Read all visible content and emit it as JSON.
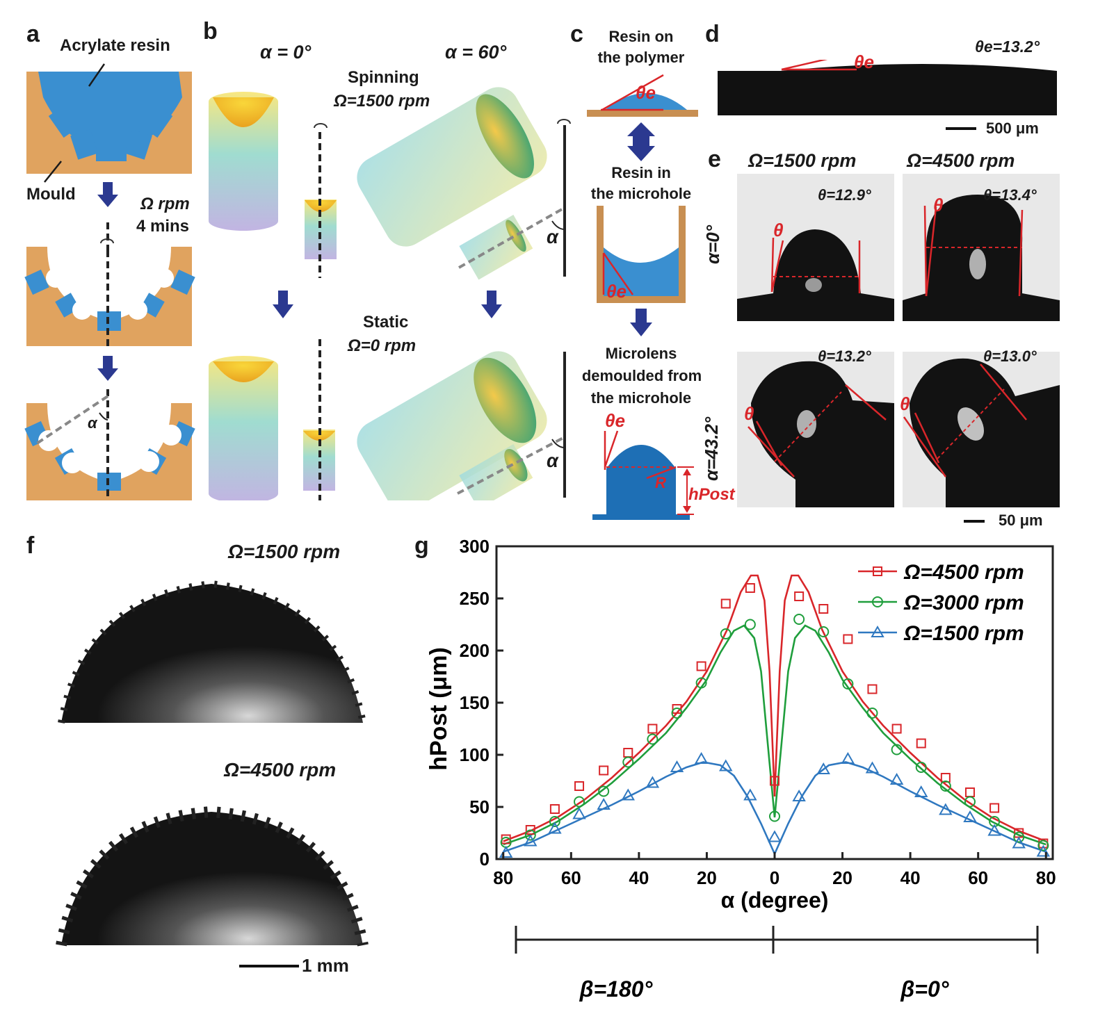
{
  "panels": {
    "a": {
      "letter": "a",
      "resin_label": "Acrylate resin",
      "mould_label": "Mould",
      "speed_label": "Ω rpm",
      "time_label": "4 mins",
      "angle_symbol": "α"
    },
    "b": {
      "letter": "b",
      "alpha0_label": "α = 0°",
      "alpha60_label": "α = 60°",
      "spinning_label": "Spinning",
      "spinning_speed": "Ω=1500 rpm",
      "static_label": "Static",
      "static_speed": "Ω=0 rpm",
      "angle_symbol": "α"
    },
    "c": {
      "letter": "c",
      "step1_line1": "Resin on",
      "step1_line2": "the polymer",
      "step2_line1": "Resin in",
      "step2_line2": "the microhole",
      "step3_line1": "Microlens",
      "step3_line2": "demoulded from",
      "step3_line2b": "the microhole",
      "theta_e": "θe",
      "radius": "R",
      "h_post": "hPost"
    },
    "d": {
      "letter": "d",
      "contact_angle": "θe=13.2°",
      "theta_e": "θe",
      "scale": "500 μm"
    },
    "e": {
      "letter": "e",
      "col1": "Ω=1500 rpm",
      "col2": "Ω=4500 rpm",
      "row1": "α=0°",
      "row2": "α=43.2°",
      "angles": [
        "θ=12.9°",
        "θ=13.4°",
        "θ=13.2°",
        "θ=13.0°"
      ],
      "theta": "θ",
      "scale": "50 μm"
    },
    "f": {
      "letter": "f",
      "top_label": "Ω=1500 rpm",
      "bottom_label": "Ω=4500 rpm",
      "scale": "1 mm"
    },
    "g": {
      "letter": "g",
      "beta_left": "β=180°",
      "beta_right": "β=0°"
    }
  },
  "chart_data": {
    "type": "scatter",
    "ylabel": "hPost (μm)",
    "xlabel": "α (degree)",
    "xlim": [
      -82,
      82
    ],
    "ylim": [
      0,
      300
    ],
    "x_ticks": [
      "80",
      "60",
      "40",
      "20",
      "0",
      "20",
      "40",
      "60",
      "80"
    ],
    "y_ticks": [
      "0",
      "50",
      "100",
      "150",
      "200",
      "250",
      "300"
    ],
    "x_tick_values": [
      -80,
      -60,
      -40,
      -20,
      0,
      20,
      40,
      60,
      80
    ],
    "y_tick_values": [
      0,
      50,
      100,
      150,
      200,
      250,
      300
    ],
    "legend_position": "top-right",
    "series": [
      {
        "name": "Ω=4500 rpm",
        "color": "#d9262a",
        "marker": "square",
        "points": [
          [
            -79.2,
            19
          ],
          [
            -72,
            28
          ],
          [
            -64.8,
            48
          ],
          [
            -57.6,
            70
          ],
          [
            -50.4,
            85
          ],
          [
            -43.2,
            102
          ],
          [
            -36,
            125
          ],
          [
            -28.8,
            144
          ],
          [
            -21.6,
            185
          ],
          [
            -14.4,
            245
          ],
          [
            -7.2,
            260
          ],
          [
            0,
            75
          ],
          [
            7.2,
            252
          ],
          [
            14.4,
            240
          ],
          [
            21.6,
            211
          ],
          [
            28.8,
            163
          ],
          [
            36,
            125
          ],
          [
            43.2,
            111
          ],
          [
            50.4,
            78
          ],
          [
            57.6,
            64
          ],
          [
            64.8,
            49
          ],
          [
            72,
            25
          ],
          [
            79.2,
            15
          ]
        ],
        "fit": [
          [
            -80,
            17
          ],
          [
            -72,
            27
          ],
          [
            -64,
            40
          ],
          [
            -56,
            57
          ],
          [
            -48,
            78
          ],
          [
            -40,
            102
          ],
          [
            -32,
            128
          ],
          [
            -26,
            151
          ],
          [
            -20,
            180
          ],
          [
            -14,
            220
          ],
          [
            -10,
            256
          ],
          [
            -7,
            272
          ],
          [
            -5,
            272
          ],
          [
            -3,
            248
          ],
          [
            -1.5,
            180
          ],
          [
            0,
            60
          ],
          [
            1.5,
            180
          ],
          [
            3,
            248
          ],
          [
            5,
            272
          ],
          [
            7,
            272
          ],
          [
            10,
            256
          ],
          [
            14,
            220
          ],
          [
            20,
            180
          ],
          [
            26,
            151
          ],
          [
            32,
            128
          ],
          [
            40,
            102
          ],
          [
            48,
            78
          ],
          [
            56,
            57
          ],
          [
            64,
            40
          ],
          [
            72,
            27
          ],
          [
            80,
            17
          ]
        ]
      },
      {
        "name": "Ω=3000 rpm",
        "color": "#1f9e3c",
        "marker": "circle",
        "points": [
          [
            -79.2,
            16
          ],
          [
            -72,
            23
          ],
          [
            -64.8,
            36
          ],
          [
            -57.6,
            55
          ],
          [
            -50.4,
            65
          ],
          [
            -43.2,
            93
          ],
          [
            -36,
            115
          ],
          [
            -28.8,
            140
          ],
          [
            -21.6,
            169
          ],
          [
            -14.4,
            216
          ],
          [
            -7.2,
            225
          ],
          [
            0,
            41
          ],
          [
            7.2,
            230
          ],
          [
            14.4,
            218
          ],
          [
            21.6,
            168
          ],
          [
            28.8,
            140
          ],
          [
            36,
            105
          ],
          [
            43.2,
            88
          ],
          [
            50.4,
            70
          ],
          [
            57.6,
            55
          ],
          [
            64.8,
            36
          ],
          [
            72,
            21
          ],
          [
            79.2,
            13
          ]
        ],
        "fit": [
          [
            -80,
            14
          ],
          [
            -72,
            23
          ],
          [
            -64,
            36
          ],
          [
            -56,
            53
          ],
          [
            -48,
            73
          ],
          [
            -40,
            96
          ],
          [
            -32,
            121
          ],
          [
            -26,
            145
          ],
          [
            -20,
            172
          ],
          [
            -16,
            198
          ],
          [
            -12,
            219
          ],
          [
            -9,
            224
          ],
          [
            -6,
            212
          ],
          [
            -4,
            180
          ],
          [
            -2,
            110
          ],
          [
            0,
            40
          ],
          [
            2,
            110
          ],
          [
            4,
            180
          ],
          [
            6,
            212
          ],
          [
            9,
            224
          ],
          [
            12,
            219
          ],
          [
            16,
            198
          ],
          [
            20,
            172
          ],
          [
            26,
            145
          ],
          [
            32,
            121
          ],
          [
            40,
            96
          ],
          [
            48,
            73
          ],
          [
            56,
            53
          ],
          [
            64,
            36
          ],
          [
            72,
            23
          ],
          [
            80,
            14
          ]
        ]
      },
      {
        "name": "Ω=1500 rpm",
        "color": "#2f78c0",
        "marker": "triangle",
        "points": [
          [
            -79.2,
            6
          ],
          [
            -72,
            17
          ],
          [
            -64.8,
            29
          ],
          [
            -57.6,
            43
          ],
          [
            -50.4,
            52
          ],
          [
            -43.2,
            61
          ],
          [
            -36,
            73
          ],
          [
            -28.8,
            88
          ],
          [
            -21.6,
            96
          ],
          [
            -14.4,
            89
          ],
          [
            -7.2,
            61
          ],
          [
            0,
            21
          ],
          [
            7.2,
            60
          ],
          [
            14.4,
            86
          ],
          [
            21.6,
            96
          ],
          [
            28.8,
            87
          ],
          [
            36,
            76
          ],
          [
            43.2,
            64
          ],
          [
            50.4,
            47
          ],
          [
            57.6,
            40
          ],
          [
            64.8,
            27
          ],
          [
            72,
            15
          ],
          [
            79.2,
            7
          ]
        ],
        "fit": [
          [
            -80,
            7
          ],
          [
            -72,
            16
          ],
          [
            -64,
            28
          ],
          [
            -56,
            40
          ],
          [
            -48,
            52
          ],
          [
            -40,
            65
          ],
          [
            -32,
            79
          ],
          [
            -26,
            88
          ],
          [
            -21,
            93
          ],
          [
            -16,
            90
          ],
          [
            -12,
            80
          ],
          [
            -8,
            60
          ],
          [
            -4,
            34
          ],
          [
            0,
            5
          ],
          [
            4,
            34
          ],
          [
            8,
            60
          ],
          [
            12,
            80
          ],
          [
            16,
            90
          ],
          [
            21,
            93
          ],
          [
            26,
            88
          ],
          [
            32,
            79
          ],
          [
            40,
            65
          ],
          [
            48,
            52
          ],
          [
            56,
            40
          ],
          [
            64,
            28
          ],
          [
            72,
            16
          ],
          [
            80,
            7
          ]
        ]
      }
    ]
  }
}
